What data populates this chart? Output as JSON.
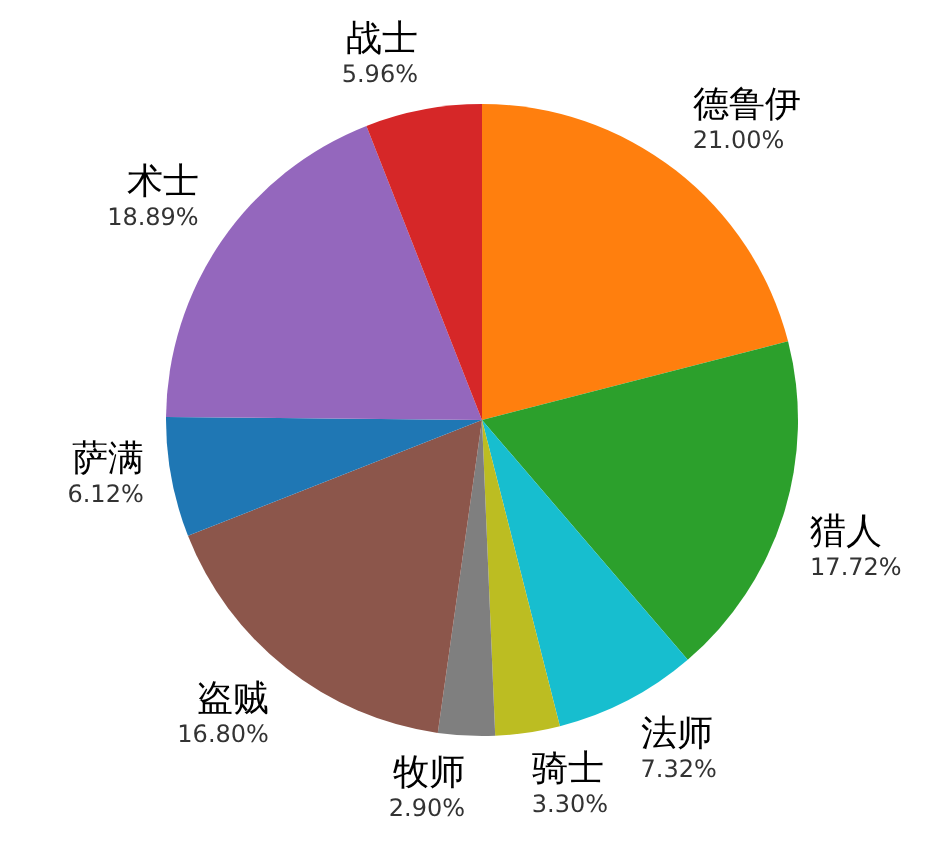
{
  "chart_data": {
    "type": "pie",
    "categories": [
      "德鲁伊",
      "猎人",
      "法师",
      "骑士",
      "牧师",
      "盗贼",
      "萨满",
      "术士",
      "战士"
    ],
    "values": [
      21.0,
      17.72,
      7.32,
      3.3,
      2.9,
      16.8,
      6.12,
      18.89,
      5.96
    ],
    "value_labels": [
      "21.00%",
      "17.72%",
      "7.32%",
      "3.30%",
      "2.90%",
      "16.80%",
      "6.12%",
      "18.89%",
      "5.96%"
    ],
    "colors": [
      "#ff7f0e",
      "#2ca02c",
      "#17becf",
      "#bcbd22",
      "#7f7f7f",
      "#8c564b",
      "#1f77b4",
      "#9467bd",
      "#d62728"
    ]
  }
}
